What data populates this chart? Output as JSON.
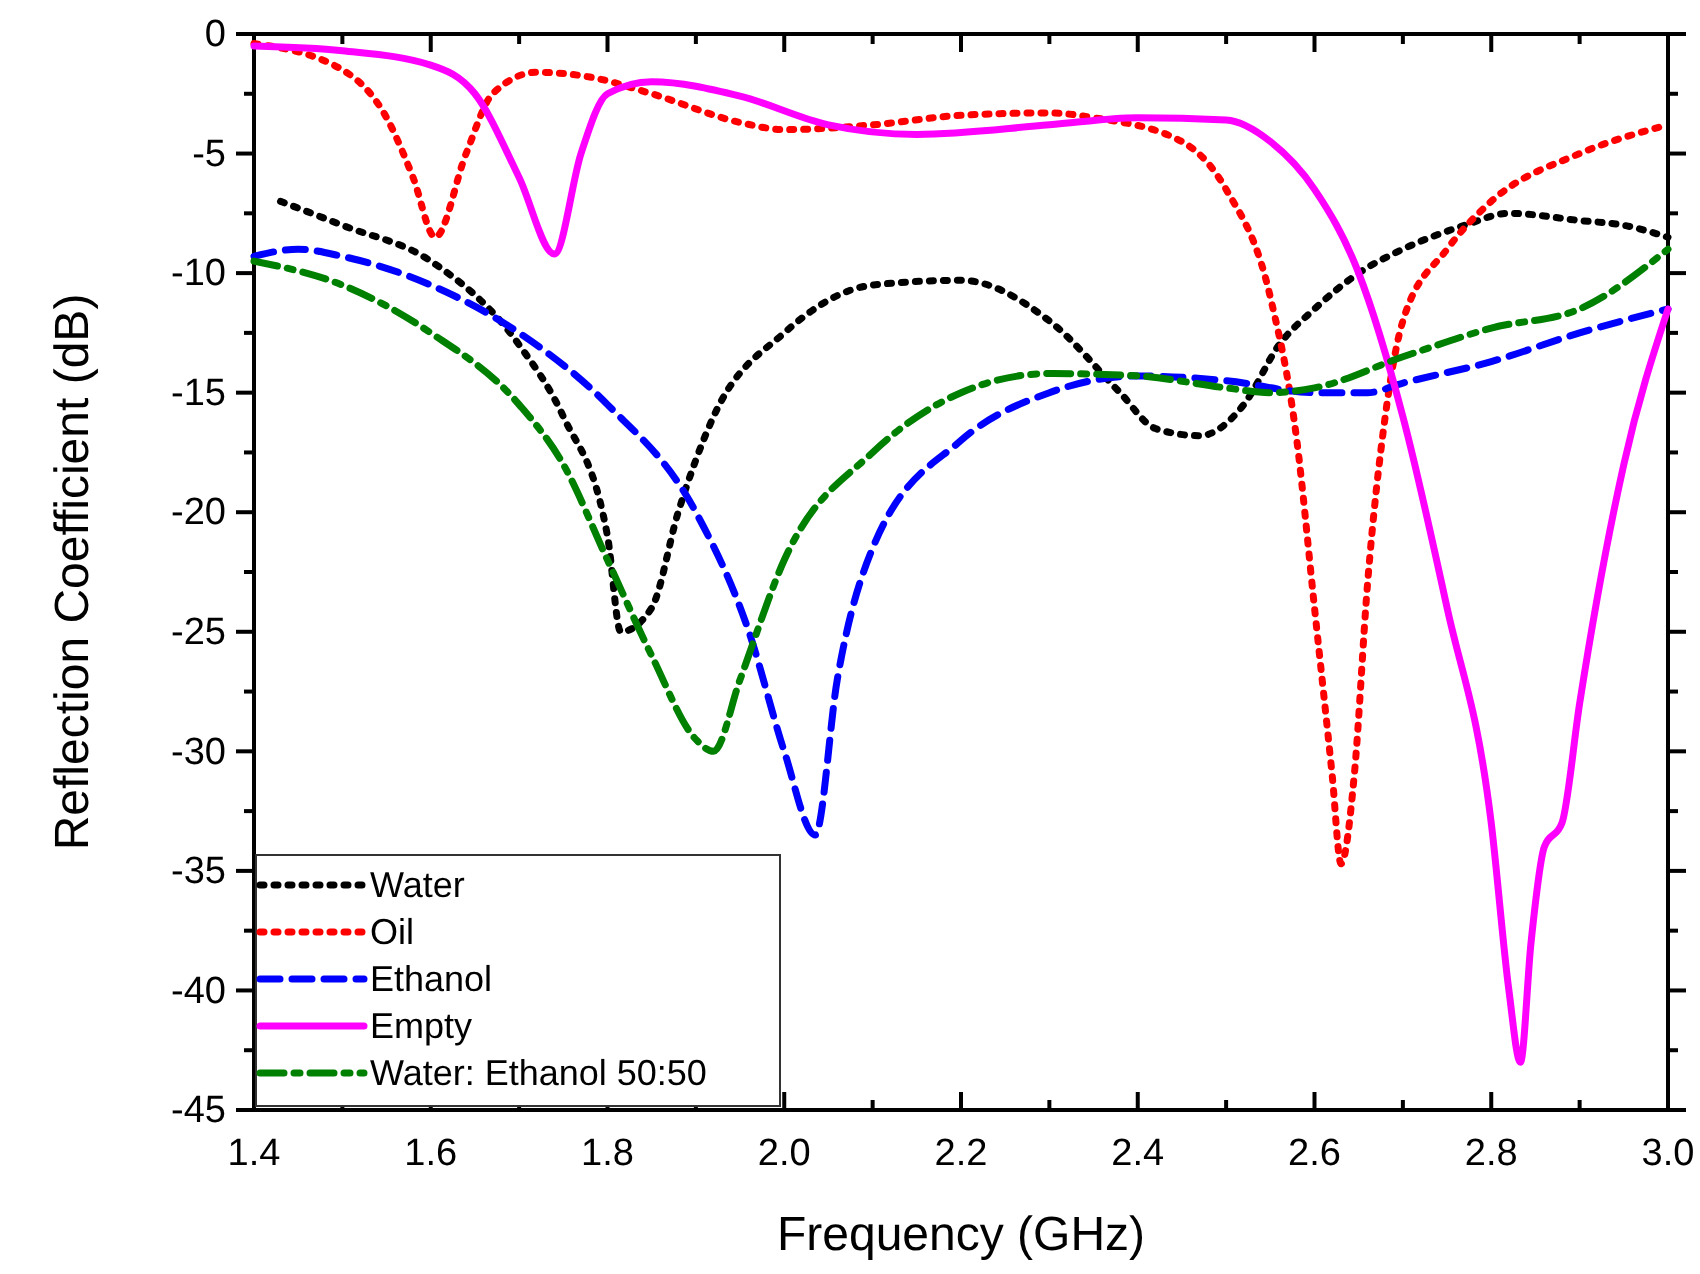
{
  "chart_data": {
    "type": "line",
    "xlabel": "Frequency (GHz)",
    "ylabel": "Reflection Coefficient (dB)",
    "xlim": [
      1.4,
      3.0
    ],
    "ylim": [
      -45,
      0
    ],
    "xticks": [
      1.4,
      {
        "value": 1.5,
        "label": null
      },
      1.6,
      {
        "value": 1.7,
        "label": null
      },
      1.8,
      {
        "value": 1.9,
        "label": null
      },
      {
        "value": 2,
        "label": "2.0"
      },
      {
        "value": 2.1,
        "label": null
      },
      2.2,
      {
        "value": 2.3,
        "label": null
      },
      2.4,
      {
        "value": 2.5,
        "label": null
      },
      2.6,
      {
        "value": 2.7,
        "label": null
      },
      2.8,
      {
        "value": 2.9,
        "label": null
      },
      {
        "value": 3,
        "label": "3.0"
      }
    ],
    "yticks": [
      -45,
      {
        "value": -42.5,
        "label": null
      },
      -40,
      {
        "value": -37.5,
        "label": null
      },
      -35,
      {
        "value": -32.5,
        "label": null
      },
      -30,
      {
        "value": -27.5,
        "label": null
      },
      -25,
      {
        "value": -22.5,
        "label": null
      },
      -20,
      {
        "value": -17.5,
        "label": null
      },
      -15,
      {
        "value": -12.5,
        "label": null
      },
      -10,
      {
        "value": -7.5,
        "label": null
      },
      -5,
      {
        "value": -2.5,
        "label": null
      },
      0
    ],
    "grid": false,
    "legend": "bottom left",
    "marker": "none",
    "series": [
      {
        "name": "Water",
        "color": "#000000",
        "line_style": "dotted",
        "x": [
          1.43,
          1.5,
          1.6,
          1.7,
          1.75,
          1.8,
          1.815,
          1.85,
          1.88,
          1.92,
          2.0,
          2.1,
          2.2,
          2.3,
          2.38,
          2.42,
          2.47,
          2.52,
          2.56,
          2.6,
          2.65,
          2.7,
          2.77,
          2.82,
          2.9,
          2.95,
          3.0
        ],
        "values": [
          -7,
          -8,
          -9.5,
          -13,
          -16,
          -21,
          -25,
          -24,
          -20,
          -16,
          -12.5,
          -10.5,
          -10.3,
          -12,
          -15,
          -16.5,
          -16.8,
          -15.5,
          -13,
          -11.5,
          -10,
          -9,
          -8,
          -7.5,
          -7.8,
          -8,
          -8.5
        ]
      },
      {
        "name": "Oil",
        "color": "#ff0000",
        "line_style": "dotted",
        "x": [
          1.4,
          1.5,
          1.55,
          1.58,
          1.605,
          1.64,
          1.67,
          1.72,
          1.78,
          1.85,
          1.95,
          2.0,
          2.1,
          2.2,
          2.3,
          2.35,
          2.45,
          2.5,
          2.55,
          2.58,
          2.6,
          2.62,
          2.63,
          2.645,
          2.66,
          2.68,
          2.7,
          2.75,
          2.8,
          2.9,
          3.0
        ],
        "values": [
          -0.4,
          -1.5,
          -3.5,
          -6,
          -8.5,
          -5,
          -2.5,
          -1.6,
          -1.8,
          -2.5,
          -3.7,
          -4,
          -3.8,
          -3.4,
          -3.3,
          -3.5,
          -4.5,
          -6.5,
          -11,
          -17,
          -24,
          -31,
          -34.7,
          -31,
          -23,
          -16,
          -12,
          -9,
          -7,
          -5,
          -3.8
        ]
      },
      {
        "name": "Ethanol",
        "color": "#0000ff",
        "line_style": "dashed",
        "x": [
          1.4,
          1.45,
          1.5,
          1.6,
          1.7,
          1.8,
          1.9,
          1.96,
          2.0,
          2.035,
          2.06,
          2.1,
          2.2,
          2.3,
          2.4,
          2.5,
          2.6,
          2.66,
          2.7,
          2.8,
          2.9,
          3.0
        ],
        "values": [
          -9.3,
          -9,
          -9.3,
          -10.5,
          -12.5,
          -15.5,
          -20,
          -25,
          -30,
          -33.5,
          -27,
          -21.5,
          -17,
          -15,
          -14.3,
          -14.5,
          -15,
          -15,
          -14.6,
          -13.7,
          -12.5,
          -11.5
        ]
      },
      {
        "name": "Empty",
        "color": "#ff00ff",
        "line_style": "solid",
        "x": [
          1.4,
          1.5,
          1.6,
          1.65,
          1.7,
          1.74,
          1.77,
          1.8,
          1.85,
          1.95,
          2.05,
          2.15,
          2.3,
          2.4,
          2.5,
          2.55,
          2.6,
          2.65,
          2.7,
          2.75,
          2.8,
          2.82,
          2.833,
          2.845,
          2.86,
          2.88,
          2.9,
          2.95,
          3.0
        ],
        "values": [
          -0.5,
          -0.7,
          -1.3,
          -2.5,
          -6,
          -9.2,
          -5,
          -2.5,
          -2,
          -2.6,
          -3.8,
          -4.2,
          -3.8,
          -3.5,
          -3.6,
          -4.5,
          -6.5,
          -10,
          -16,
          -24,
          -33,
          -40,
          -43,
          -38,
          -34,
          -33,
          -28,
          -18,
          -11.5
        ]
      },
      {
        "name": "Water: Ethanol 50:50",
        "color": "#008000",
        "line_style": "dashdot",
        "x": [
          1.4,
          1.5,
          1.6,
          1.7,
          1.75,
          1.8,
          1.85,
          1.9,
          1.92,
          1.95,
          2.0,
          2.1,
          2.2,
          2.3,
          2.4,
          2.5,
          2.55,
          2.6,
          2.7,
          2.8,
          2.9,
          3.0
        ],
        "values": [
          -9.5,
          -10.5,
          -12.5,
          -15.5,
          -18,
          -22,
          -26,
          -29.5,
          -30,
          -27,
          -22,
          -17.5,
          -15,
          -14.2,
          -14.3,
          -14.8,
          -15,
          -14.8,
          -13.5,
          -12.3,
          -11.5,
          -9
        ]
      }
    ]
  }
}
